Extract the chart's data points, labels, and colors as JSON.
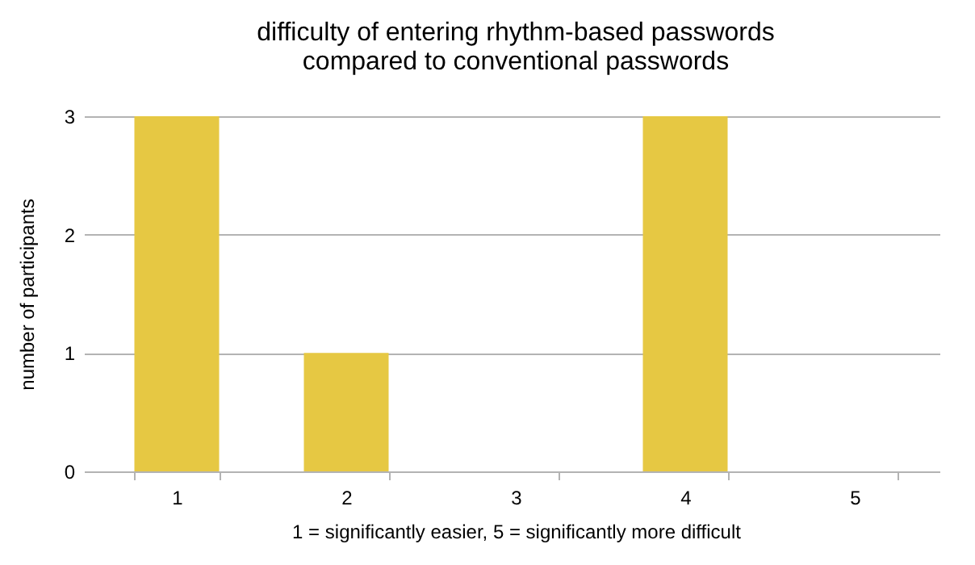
{
  "chart_data": {
    "type": "bar",
    "title": "difficulty of entering rhythm-based passwords\ncompared to conventional passwords",
    "xlabel": "1 = significantly easier, 5 = significantly more difficult",
    "ylabel": "number of participants",
    "categories": [
      "1",
      "2",
      "3",
      "4",
      "5"
    ],
    "values": [
      3,
      1,
      0,
      3,
      0
    ],
    "color": "#e6c843",
    "ylim": [
      0,
      3
    ],
    "yticks": [
      0,
      1,
      2,
      3
    ],
    "grid": "y"
  }
}
